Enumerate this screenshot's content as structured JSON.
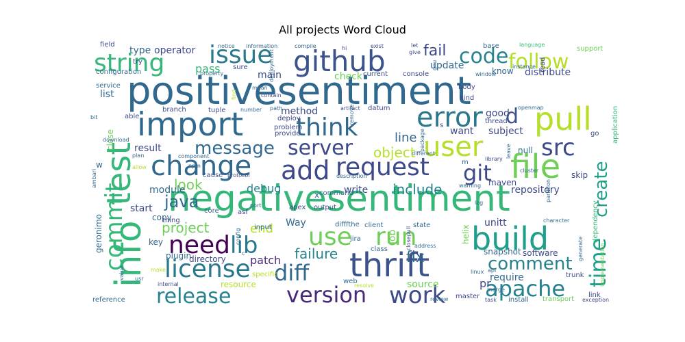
{
  "chart_data": {
    "type": "wordcloud",
    "title": "All projects Word Cloud",
    "colormap": "viridis",
    "background": "#ffffff",
    "words": [
      {
        "text": "positivesentiment",
        "color": "#31688e"
      },
      {
        "text": "negativesentiment",
        "color": "#35b779"
      },
      {
        "text": "import",
        "color": "#31688e"
      },
      {
        "text": "github",
        "color": "#3b528b"
      },
      {
        "text": "thrift",
        "color": "#3b528b"
      },
      {
        "text": "file",
        "color": "#6ece58"
      },
      {
        "text": "build",
        "color": "#1f9e89"
      },
      {
        "text": "pull",
        "color": "#b5de2b"
      },
      {
        "text": "change",
        "color": "#31688e"
      },
      {
        "text": "error",
        "color": "#2a788e"
      },
      {
        "text": "test",
        "color": "#35b779"
      },
      {
        "text": "info",
        "color": "#35b779"
      },
      {
        "text": "string",
        "color": "#35b779"
      },
      {
        "text": "issue",
        "color": "#2a788e"
      },
      {
        "text": "user",
        "color": "#b5de2b"
      },
      {
        "text": "add",
        "color": "#3e4989"
      },
      {
        "text": "request",
        "color": "#3e4989"
      },
      {
        "text": "license",
        "color": "#2a788e"
      },
      {
        "text": "need",
        "color": "#440154"
      },
      {
        "text": "use",
        "color": "#6ece58"
      },
      {
        "text": "run",
        "color": "#6ece58"
      },
      {
        "text": "think",
        "color": "#31688e"
      },
      {
        "text": "server",
        "color": "#3e4989"
      },
      {
        "text": "code",
        "color": "#26828e"
      },
      {
        "text": "follow",
        "color": "#b5de2b"
      },
      {
        "text": "apache",
        "color": "#26828e"
      },
      {
        "text": "diff",
        "color": "#31688e"
      },
      {
        "text": "version",
        "color": "#482878"
      },
      {
        "text": "work",
        "color": "#3e4989"
      },
      {
        "text": "release",
        "color": "#26828e"
      },
      {
        "text": "lib",
        "color": "#2a788e"
      },
      {
        "text": "commit",
        "color": "#35b779"
      },
      {
        "text": "time",
        "color": "#1f9e89"
      },
      {
        "text": "create",
        "color": "#1f9e89"
      },
      {
        "text": "src",
        "color": "#3e4989"
      },
      {
        "text": "git",
        "color": "#3e4989"
      },
      {
        "text": "message",
        "color": "#31688e"
      },
      {
        "text": "comment",
        "color": "#26828e"
      },
      {
        "text": "fail",
        "color": "#3e4989"
      },
      {
        "text": "d",
        "color": "#3b528b"
      },
      {
        "text": "java",
        "color": "#31688e"
      },
      {
        "text": "look",
        "color": "#6ece58"
      },
      {
        "text": "project",
        "color": "#6ece58"
      },
      {
        "text": "failure",
        "color": "#26828e"
      },
      {
        "text": "fix",
        "color": "#31688e"
      },
      {
        "text": "line",
        "color": "#31688e"
      },
      {
        "text": "object",
        "color": "#b5de2b"
      },
      {
        "text": "include",
        "color": "#26828e"
      },
      {
        "text": "update",
        "color": "#31688e"
      },
      {
        "text": "pass",
        "color": "#35b779"
      },
      {
        "text": "type",
        "color": "#31688e"
      },
      {
        "text": "operator",
        "color": "#3e4989"
      },
      {
        "text": "check",
        "color": "#6ece58"
      },
      {
        "text": "end",
        "color": "#b5de2b"
      },
      {
        "text": "patch",
        "color": "#482878"
      },
      {
        "text": "debug",
        "color": "#26828e"
      },
      {
        "text": "module",
        "color": "#31688e"
      },
      {
        "text": "write",
        "color": "#3e4989"
      },
      {
        "text": "repository",
        "color": "#3e4989"
      },
      {
        "text": "method",
        "color": "#3e4989"
      },
      {
        "text": "result",
        "color": "#3e4989"
      },
      {
        "text": "list",
        "color": "#31688e"
      },
      {
        "text": "start",
        "color": "#3e4989"
      },
      {
        "text": "source",
        "color": "#6ece58"
      },
      {
        "text": "pr",
        "color": "#3e4989"
      },
      {
        "text": "require",
        "color": "#31688e"
      },
      {
        "text": "job",
        "color": "#6ece58"
      },
      {
        "text": "helix",
        "color": "#6ece58"
      },
      {
        "text": "unitt",
        "color": "#3e4989"
      },
      {
        "text": "want",
        "color": "#3e4989"
      },
      {
        "text": "good",
        "color": "#3e4989"
      },
      {
        "text": "subject",
        "color": "#3e4989"
      },
      {
        "text": "distribute",
        "color": "#3e4989"
      },
      {
        "text": "main",
        "color": "#3e4989"
      },
      {
        "text": "maven",
        "color": "#3e4989"
      },
      {
        "text": "null",
        "color": "#31688e"
      },
      {
        "text": "skip",
        "color": "#3e4989"
      },
      {
        "text": "Way",
        "color": "#31688e"
      },
      {
        "text": "copy",
        "color": "#31688e"
      },
      {
        "text": "geronimo",
        "color": "#31688e"
      },
      {
        "text": "plugin",
        "color": "#31688e"
      },
      {
        "text": "key",
        "color": "#31688e"
      },
      {
        "text": "directory",
        "color": "#3e4989"
      },
      {
        "text": "resource",
        "color": "#b5de2b"
      },
      {
        "text": "reference",
        "color": "#31688e"
      },
      {
        "text": "configuration",
        "color": "#31688e"
      },
      {
        "text": "know",
        "color": "#31688e"
      },
      {
        "text": "snapshot",
        "color": "#31688e"
      },
      {
        "text": "software",
        "color": "#3e4989"
      },
      {
        "text": "application",
        "color": "#35b779"
      },
      {
        "text": "support",
        "color": "#6ece58"
      },
      {
        "text": "close",
        "color": "#6ece58"
      },
      {
        "text": "dependency",
        "color": "#35b779"
      },
      {
        "text": "transport",
        "color": "#6ece58"
      },
      {
        "text": "implementation",
        "color": "#6ece58"
      },
      {
        "text": "master",
        "color": "#3e4989"
      },
      {
        "text": "install",
        "color": "#31688e"
      },
      {
        "text": "link",
        "color": "#3e4989"
      },
      {
        "text": "exception",
        "color": "#3e4989"
      },
      {
        "text": "trunk",
        "color": "#3e4989"
      },
      {
        "text": "web",
        "color": "#31688e"
      },
      {
        "text": "client",
        "color": "#31688e"
      },
      {
        "text": "output",
        "color": "#3e4989"
      },
      {
        "text": "command",
        "color": "#31688e"
      },
      {
        "text": "difffthe",
        "color": "#31688e"
      },
      {
        "text": "state",
        "color": "#31688e"
      },
      {
        "text": "jira",
        "color": "#31688e"
      },
      {
        "text": "class",
        "color": "#31688e"
      },
      {
        "text": "apex",
        "color": "#3e4989"
      },
      {
        "text": "asf",
        "color": "#3e4989"
      },
      {
        "text": "core",
        "color": "#31688e"
      },
      {
        "text": "thing",
        "color": "#3e4989"
      },
      {
        "text": "input",
        "color": "#31688e"
      },
      {
        "text": "cause",
        "color": "#3e4989"
      },
      {
        "text": "protocol",
        "color": "#3e4989"
      },
      {
        "text": "provide",
        "color": "#3e4989"
      },
      {
        "text": "deploy",
        "color": "#3e4989"
      },
      {
        "text": "problem",
        "color": "#3e4989"
      },
      {
        "text": "tuple",
        "color": "#3e4989"
      },
      {
        "text": "branch",
        "color": "#3e4989"
      },
      {
        "text": "datum",
        "color": "#3e4989"
      },
      {
        "text": "current",
        "color": "#3e4989"
      },
      {
        "text": "console",
        "color": "#3e4989"
      },
      {
        "text": "body",
        "color": "#3e4989"
      },
      {
        "text": "thread",
        "color": "#3e4989"
      },
      {
        "text": "kind",
        "color": "#3e4989"
      },
      {
        "text": "openmap",
        "color": "#31688e"
      },
      {
        "text": "base",
        "color": "#31688e"
      },
      {
        "text": "language",
        "color": "#35b779"
      },
      {
        "text": "read",
        "color": "#3e4989"
      },
      {
        "text": "information",
        "color": "#31688e"
      },
      {
        "text": "notice",
        "color": "#31688e"
      },
      {
        "text": "compile",
        "color": "#31688e"
      },
      {
        "text": "exist",
        "color": "#3e4989"
      },
      {
        "text": "field",
        "color": "#3e4989"
      },
      {
        "text": "sure",
        "color": "#3e4989"
      },
      {
        "text": "try",
        "color": "#3e4989"
      },
      {
        "text": "service",
        "color": "#31688e"
      },
      {
        "text": "property",
        "color": "#31688e"
      },
      {
        "text": "hi",
        "color": "#3e4989"
      },
      {
        "text": "give",
        "color": "#3e4989"
      },
      {
        "text": "let",
        "color": "#3e4989"
      },
      {
        "text": "bit",
        "color": "#31688e"
      },
      {
        "text": "able",
        "color": "#3e4989"
      },
      {
        "text": "download",
        "color": "#31688e"
      },
      {
        "text": "plan",
        "color": "#31688e"
      },
      {
        "text": "allow",
        "color": "#b5de2b"
      },
      {
        "text": "w",
        "color": "#31688e"
      },
      {
        "text": "x",
        "color": "#31688e"
      },
      {
        "text": "c",
        "color": "#31688e"
      },
      {
        "text": "s",
        "color": "#3e4989"
      },
      {
        "text": "go",
        "color": "#3e4989"
      },
      {
        "text": "ambari",
        "color": "#31688e"
      },
      {
        "text": "value",
        "color": "#31688e"
      },
      {
        "text": "usr",
        "color": "#31688e"
      },
      {
        "text": "make",
        "color": "#b5de2b"
      },
      {
        "text": "internal",
        "color": "#3e4989"
      },
      {
        "text": "specific",
        "color": "#b5de2b"
      },
      {
        "text": "resolve",
        "color": "#b5de2b"
      },
      {
        "text": "api",
        "color": "#31688e"
      },
      {
        "text": "linux",
        "color": "#31688e"
      },
      {
        "text": "merge",
        "color": "#31688e"
      },
      {
        "text": "task",
        "color": "#3e4989"
      },
      {
        "text": "log",
        "color": "#31688e"
      },
      {
        "text": "warning",
        "color": "#31688e"
      },
      {
        "text": "character",
        "color": "#31688e"
      },
      {
        "text": "partition",
        "color": "#31688e"
      },
      {
        "text": "generate",
        "color": "#31688e"
      },
      {
        "text": "instance",
        "color": "#31688e"
      },
      {
        "text": "window",
        "color": "#31688e"
      },
      {
        "text": "library",
        "color": "#3e4989"
      },
      {
        "text": "leave",
        "color": "#31688e"
      },
      {
        "text": "cluster",
        "color": "#31688e"
      },
      {
        "text": "different",
        "color": "#31688e"
      },
      {
        "text": "package",
        "color": "#31688e"
      },
      {
        "text": "closepull",
        "color": "#3e4989"
      },
      {
        "text": "address",
        "color": "#31688e"
      },
      {
        "text": "contain",
        "color": "#3e4989"
      },
      {
        "text": "mean",
        "color": "#31688e"
      },
      {
        "text": "find",
        "color": "#b5de2b"
      },
      {
        "text": "deployment",
        "color": "#31688e"
      },
      {
        "text": "remove",
        "color": "#31688e"
      },
      {
        "text": "description",
        "color": "#31688e"
      },
      {
        "text": "artifact",
        "color": "#3e4989"
      },
      {
        "text": "path",
        "color": "#31688e"
      },
      {
        "text": "number",
        "color": "#31688e"
      },
      {
        "text": "component",
        "color": "#31688e"
      },
      {
        "text": "npm",
        "color": "#31688e"
      },
      {
        "text": "port",
        "color": "#31688e"
      },
      {
        "text": "config",
        "color": "#31688e"
      },
      {
        "text": "review",
        "color": "#31688e"
      },
      {
        "text": "gnu",
        "color": "#31688e"
      },
      {
        "text": "m",
        "color": "#31688e"
      }
    ]
  }
}
